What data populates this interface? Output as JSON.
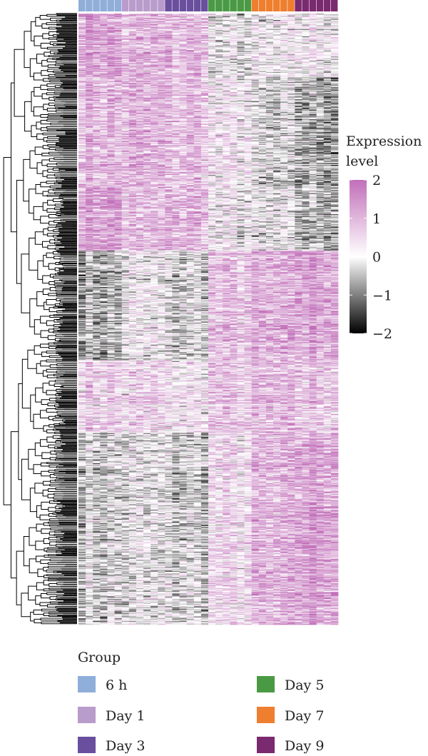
{
  "chart_data": {
    "type": "heatmap",
    "columns_per_group": 6,
    "groups": [
      {
        "name": "6 h",
        "color": "#8faed9"
      },
      {
        "name": "Day 1",
        "color": "#b89ccb"
      },
      {
        "name": "Day 3",
        "color": "#6a4f9e"
      },
      {
        "name": "Day 5",
        "color": "#4a9a45"
      },
      {
        "name": "Day 7",
        "color": "#ef7e2f"
      },
      {
        "name": "Day 9",
        "color": "#7a2a6e"
      }
    ],
    "row_clusters": [
      {
        "rows": 70,
        "group_means": [
          1.3,
          0.9,
          0.9,
          -0.2,
          -0.1,
          0.1
        ]
      },
      {
        "rows": 120,
        "group_means": [
          1.0,
          1.0,
          0.9,
          0.2,
          -0.4,
          -0.6
        ]
      },
      {
        "rows": 70,
        "group_means": [
          1.3,
          0.8,
          1.0,
          0.0,
          -0.3,
          -0.5
        ]
      },
      {
        "rows": 120,
        "group_means": [
          -0.6,
          0.0,
          -0.3,
          0.8,
          1.0,
          1.3
        ]
      },
      {
        "rows": 80,
        "group_means": [
          0.6,
          0.5,
          0.3,
          0.7,
          0.8,
          0.8
        ]
      },
      {
        "rows": 210,
        "group_means": [
          -0.3,
          -0.2,
          -0.3,
          0.4,
          0.9,
          1.3
        ]
      }
    ],
    "color_scale": {
      "title": "Expression\nlevel",
      "range": [
        -2,
        2
      ],
      "ticks": [
        2,
        1,
        0,
        -1,
        -2
      ],
      "colors": {
        "low": "#000000",
        "mid": "#ffffff",
        "high": "#c16fb9"
      }
    },
    "legend": {
      "title": "Group",
      "placement": "bottom"
    },
    "dendrogram": "rows"
  }
}
